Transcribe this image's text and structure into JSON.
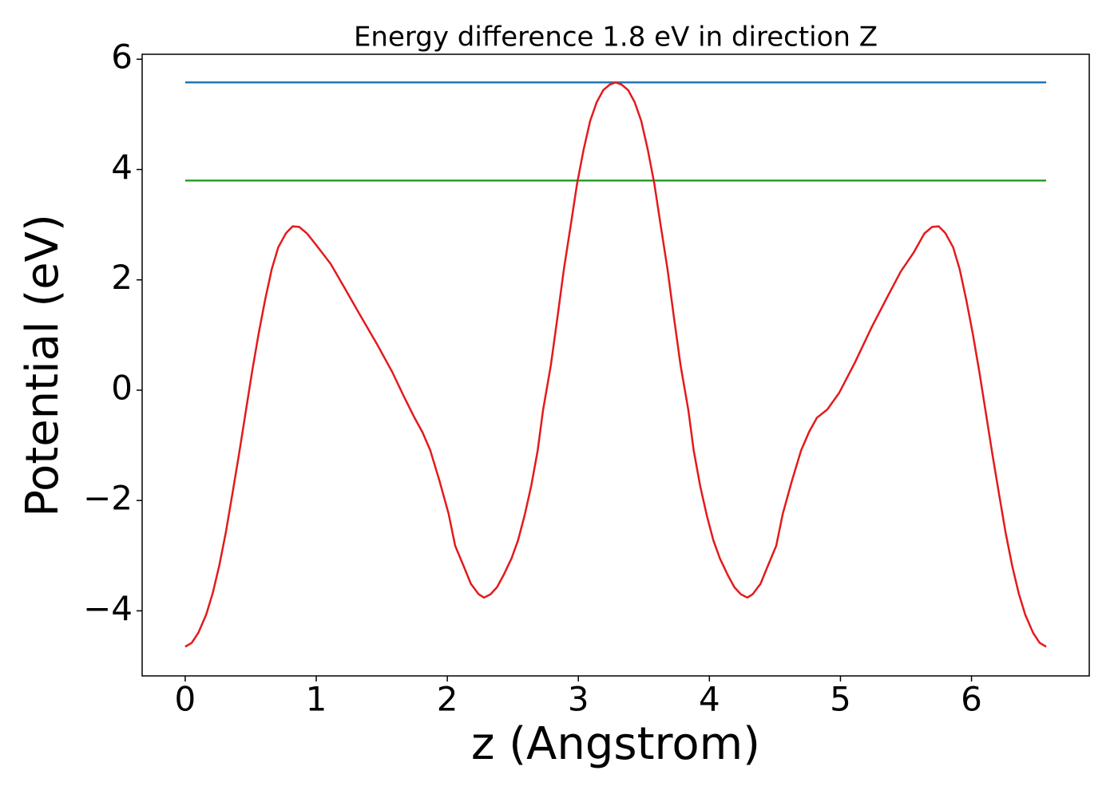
{
  "chart_data": {
    "type": "line",
    "title": "Energy difference 1.8 eV in direction Z",
    "x_label": "z (Angstrom)",
    "y_label": "Potential (eV)",
    "xlim": [
      -0.3285,
      6.8985
    ],
    "ylim": [
      -5.18,
      6.09
    ],
    "xticks": [
      0,
      1,
      2,
      3,
      4,
      5,
      6
    ],
    "yticks": [
      {
        "value": -4,
        "label": "−4"
      },
      {
        "value": -2,
        "label": "−2"
      },
      0,
      2,
      4,
      6
    ],
    "series": [
      {
        "color": "#1f77b4",
        "x": [
          0,
          6.57
        ],
        "values": [
          5.58,
          5.58
        ]
      },
      {
        "color": "#2ca02c",
        "x": [
          0,
          6.57
        ],
        "values": [
          3.8,
          3.8
        ]
      },
      {
        "color": "#e31a1c",
        "x": [
          0,
          0.05,
          0.1,
          0.16,
          0.21,
          0.26,
          0.31,
          0.36,
          0.41,
          0.46,
          0.51,
          0.56,
          0.61,
          0.66,
          0.71,
          0.77,
          0.82,
          0.87,
          0.93,
          1.01,
          1.11,
          1.21,
          1.33,
          1.46,
          1.58,
          1.67,
          1.75,
          1.81,
          1.87,
          1.94,
          2.01,
          2.06,
          2.13,
          2.18,
          2.24,
          2.28,
          2.33,
          2.38,
          2.43,
          2.49,
          2.54,
          2.59,
          2.64,
          2.69,
          2.73,
          2.79,
          2.84,
          2.89,
          2.94,
          2.99,
          3.04,
          3.09,
          3.14,
          3.19,
          3.24,
          3.285,
          3.33,
          3.38,
          3.43,
          3.48,
          3.53,
          3.58,
          3.63,
          3.68,
          3.73,
          3.78,
          3.84,
          3.88,
          3.93,
          3.98,
          4.03,
          4.08,
          4.14,
          4.19,
          4.24,
          4.29,
          4.33,
          4.39,
          4.44,
          4.51,
          4.56,
          4.63,
          4.7,
          4.76,
          4.82,
          4.9,
          4.99,
          5.11,
          5.24,
          5.36,
          5.46,
          5.56,
          5.64,
          5.7,
          5.75,
          5.8,
          5.86,
          5.91,
          5.96,
          6.01,
          6.06,
          6.11,
          6.16,
          6.21,
          6.26,
          6.31,
          6.36,
          6.41,
          6.47,
          6.52,
          6.57
        ],
        "values": [
          -4.65,
          -4.58,
          -4.4,
          -4.07,
          -3.68,
          -3.18,
          -2.58,
          -1.88,
          -1.17,
          -0.42,
          0.33,
          1.02,
          1.64,
          2.19,
          2.59,
          2.85,
          2.97,
          2.96,
          2.84,
          2.6,
          2.29,
          1.88,
          1.38,
          0.85,
          0.33,
          -0.12,
          -0.5,
          -0.76,
          -1.09,
          -1.64,
          -2.24,
          -2.82,
          -3.22,
          -3.51,
          -3.7,
          -3.76,
          -3.7,
          -3.57,
          -3.35,
          -3.05,
          -2.72,
          -2.27,
          -1.74,
          -1.09,
          -0.37,
          0.45,
          1.31,
          2.2,
          2.96,
          3.74,
          4.36,
          4.88,
          5.22,
          5.44,
          5.54,
          5.58,
          5.54,
          5.44,
          5.22,
          4.88,
          4.36,
          3.74,
          2.96,
          2.2,
          1.31,
          0.45,
          -0.37,
          -1.09,
          -1.74,
          -2.27,
          -2.72,
          -3.05,
          -3.35,
          -3.57,
          -3.7,
          -3.76,
          -3.7,
          -3.51,
          -3.22,
          -2.82,
          -2.24,
          -1.64,
          -1.09,
          -0.76,
          -0.5,
          -0.35,
          -0.05,
          0.5,
          1.15,
          1.7,
          2.15,
          2.5,
          2.84,
          2.96,
          2.97,
          2.85,
          2.59,
          2.19,
          1.64,
          1.02,
          0.33,
          -0.42,
          -1.17,
          -1.88,
          -2.58,
          -3.18,
          -3.68,
          -4.07,
          -4.4,
          -4.58,
          -4.65
        ]
      }
    ]
  }
}
